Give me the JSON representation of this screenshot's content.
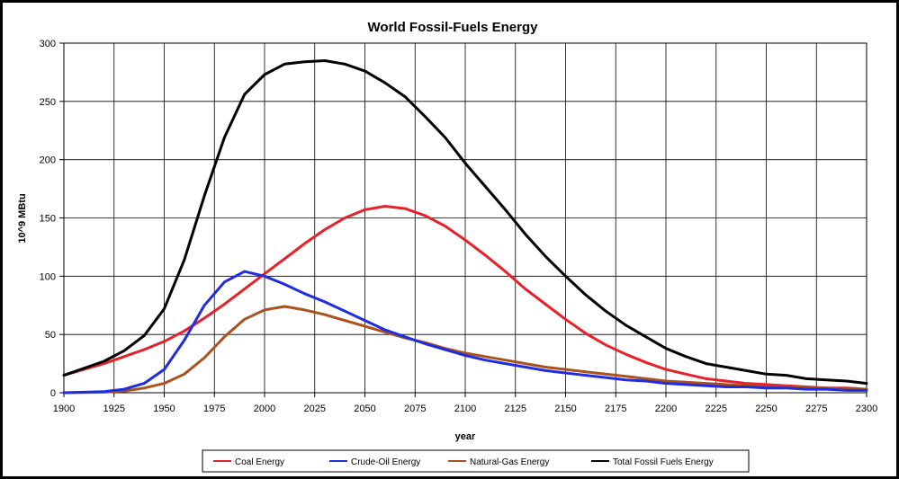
{
  "chart_data": {
    "type": "line",
    "title": "World Fossil-Fuels Energy",
    "xlabel": "year",
    "ylabel": "10^9 MBtu",
    "xlim": [
      1900,
      2300
    ],
    "ylim": [
      0,
      300
    ],
    "x_ticks": [
      "1900",
      "1925",
      "1950",
      "1975",
      "2000",
      "2025",
      "2050",
      "2075",
      "2100",
      "2125",
      "2150",
      "2175",
      "2200",
      "2225",
      "2250",
      "2275",
      "2300"
    ],
    "y_ticks": [
      "0",
      "50",
      "100",
      "150",
      "200",
      "250",
      "300"
    ],
    "grid": true,
    "legend_position": "bottom",
    "x": [
      1900,
      1910,
      1920,
      1930,
      1940,
      1950,
      1960,
      1970,
      1980,
      1990,
      2000,
      2010,
      2020,
      2030,
      2040,
      2050,
      2060,
      2070,
      2080,
      2090,
      2100,
      2110,
      2120,
      2130,
      2140,
      2150,
      2160,
      2170,
      2180,
      2190,
      2200,
      2210,
      2220,
      2230,
      2240,
      2250,
      2260,
      2270,
      2280,
      2290,
      2300
    ],
    "series": [
      {
        "name": "Coal Energy",
        "color": "#e8202a",
        "values": [
          15,
          20,
          25,
          31,
          37,
          44,
          53,
          64,
          76,
          89,
          102,
          115,
          128,
          140,
          150,
          157,
          160,
          158,
          152,
          143,
          131,
          118,
          104,
          89,
          76,
          63,
          51,
          41,
          33,
          26,
          20,
          16,
          12,
          10,
          8,
          7,
          6,
          5,
          4,
          4,
          3
        ]
      },
      {
        "name": "Crude-Oil Energy",
        "color": "#1f2de0",
        "values": [
          0,
          0.5,
          1,
          3,
          8,
          20,
          45,
          75,
          95,
          104,
          100,
          93,
          85,
          78,
          70,
          62,
          54,
          48,
          42,
          37,
          32,
          28,
          25,
          22,
          19,
          17,
          15,
          13,
          11,
          10,
          8,
          7,
          6,
          5,
          5,
          4,
          4,
          3,
          3,
          2,
          2
        ]
      },
      {
        "name": "Natural-Gas Energy",
        "color": "#a8521e",
        "values": [
          0,
          0.2,
          0.5,
          1.5,
          4,
          8,
          16,
          30,
          48,
          63,
          71,
          74,
          71,
          67,
          62,
          57,
          52,
          47,
          43,
          38,
          34,
          31,
          28,
          25,
          22,
          20,
          18,
          16,
          14,
          12,
          10,
          9,
          8,
          7,
          6,
          5,
          5,
          4,
          4,
          3,
          3
        ]
      },
      {
        "name": "Total Fossil Fuels Energy",
        "color": "#000000",
        "values": [
          15,
          21,
          27,
          36,
          49,
          72,
          114,
          169,
          219,
          256,
          273,
          282,
          284,
          285,
          282,
          276,
          266,
          254,
          237,
          219,
          197,
          177,
          157,
          136,
          117,
          100,
          84,
          70,
          58,
          48,
          38,
          31,
          25,
          22,
          19,
          16,
          15,
          12,
          11,
          10,
          8
        ]
      }
    ]
  }
}
